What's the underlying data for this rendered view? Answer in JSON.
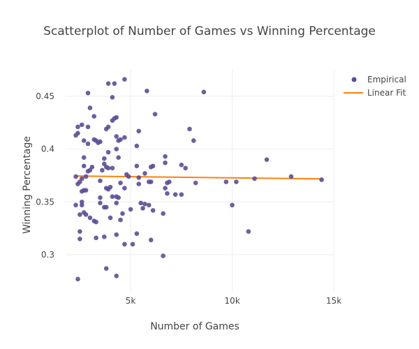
{
  "chart_data": {
    "type": "scatter",
    "title": "Scatterplot of Number of Games vs Winning Percentage",
    "xlabel": "Number of Games",
    "ylabel": "Winning Percentage",
    "xlim": [
      1800,
      15000
    ],
    "ylim": [
      0.265,
      0.475
    ],
    "x_ticks": [
      5000,
      10000,
      15000
    ],
    "x_tick_labels": [
      "5k",
      "10k",
      "15k"
    ],
    "y_ticks": [
      0.3,
      0.35,
      0.4,
      0.45
    ],
    "y_tick_labels": [
      "0.3",
      "0.35",
      "0.4",
      "0.45"
    ],
    "grid": true,
    "legend_position": "top-right",
    "colors": {
      "empirical": "#5b4e96",
      "linear_fit": "#ff7f0e",
      "grid": "#eeeeee",
      "text": "#444444"
    },
    "series": [
      {
        "name": "Empirical",
        "kind": "markers",
        "points": [
          [
            2400,
            0.277
          ],
          [
            3800,
            0.287
          ],
          [
            4300,
            0.28
          ],
          [
            6600,
            0.299
          ],
          [
            2300,
            0.347
          ],
          [
            2400,
            0.367
          ],
          [
            2300,
            0.374
          ],
          [
            2500,
            0.369
          ],
          [
            2400,
            0.415
          ],
          [
            2300,
            0.413
          ],
          [
            2400,
            0.421
          ],
          [
            2600,
            0.423
          ],
          [
            2700,
            0.408
          ],
          [
            2900,
            0.405
          ],
          [
            2900,
            0.421
          ],
          [
            2900,
            0.453
          ],
          [
            3000,
            0.439
          ],
          [
            3200,
            0.431
          ],
          [
            3200,
            0.409
          ],
          [
            3300,
            0.408
          ],
          [
            3500,
            0.407
          ],
          [
            3400,
            0.406
          ],
          [
            3600,
            0.38
          ],
          [
            3500,
            0.37
          ],
          [
            3100,
            0.383
          ],
          [
            3000,
            0.38
          ],
          [
            2900,
            0.379
          ],
          [
            2800,
            0.374
          ],
          [
            2600,
            0.372
          ],
          [
            2700,
            0.384
          ],
          [
            2700,
            0.392
          ],
          [
            2600,
            0.35
          ],
          [
            2600,
            0.36
          ],
          [
            2700,
            0.361
          ],
          [
            2800,
            0.361
          ],
          [
            2700,
            0.34
          ],
          [
            2600,
            0.347
          ],
          [
            2500,
            0.338
          ],
          [
            2500,
            0.322
          ],
          [
            2500,
            0.315
          ],
          [
            2800,
            0.338
          ],
          [
            3000,
            0.335
          ],
          [
            3200,
            0.332
          ],
          [
            3300,
            0.331
          ],
          [
            3300,
            0.316
          ],
          [
            3500,
            0.354
          ],
          [
            3500,
            0.349
          ],
          [
            3700,
            0.345
          ],
          [
            3700,
            0.317
          ],
          [
            3800,
            0.345
          ],
          [
            3900,
            0.362
          ],
          [
            3800,
            0.363
          ],
          [
            4000,
            0.364
          ],
          [
            4100,
            0.355
          ],
          [
            4000,
            0.335
          ],
          [
            4300,
            0.319
          ],
          [
            4500,
            0.333
          ],
          [
            4600,
            0.339
          ],
          [
            4700,
            0.31
          ],
          [
            5100,
            0.31
          ],
          [
            5300,
            0.32
          ],
          [
            5000,
            0.343
          ],
          [
            5500,
            0.349
          ],
          [
            5600,
            0.344
          ],
          [
            5700,
            0.348
          ],
          [
            5900,
            0.347
          ],
          [
            5400,
            0.367
          ],
          [
            5400,
            0.373
          ],
          [
            4700,
            0.363
          ],
          [
            4500,
            0.368
          ],
          [
            4400,
            0.354
          ],
          [
            4300,
            0.349
          ],
          [
            4300,
            0.355
          ],
          [
            4100,
            0.382
          ],
          [
            3900,
            0.382
          ],
          [
            3800,
            0.383
          ],
          [
            3700,
            0.386
          ],
          [
            3700,
            0.391
          ],
          [
            3900,
            0.397
          ],
          [
            3800,
            0.419
          ],
          [
            3900,
            0.421
          ],
          [
            4100,
            0.427
          ],
          [
            4200,
            0.429
          ],
          [
            4300,
            0.43
          ],
          [
            4300,
            0.412
          ],
          [
            4400,
            0.408
          ],
          [
            4300,
            0.4
          ],
          [
            4400,
            0.392
          ],
          [
            4500,
            0.409
          ],
          [
            4700,
            0.411
          ],
          [
            4800,
            0.376
          ],
          [
            4900,
            0.374
          ],
          [
            5300,
            0.384
          ],
          [
            5300,
            0.403
          ],
          [
            5400,
            0.417
          ],
          [
            5700,
            0.377
          ],
          [
            5900,
            0.369
          ],
          [
            6000,
            0.383
          ],
          [
            6100,
            0.384
          ],
          [
            6000,
            0.369
          ],
          [
            6100,
            0.342
          ],
          [
            6000,
            0.314
          ],
          [
            6600,
            0.339
          ],
          [
            6700,
            0.363
          ],
          [
            6800,
            0.358
          ],
          [
            6800,
            0.368
          ],
          [
            6900,
            0.369
          ],
          [
            6700,
            0.387
          ],
          [
            6700,
            0.393
          ],
          [
            7200,
            0.357
          ],
          [
            7500,
            0.357
          ],
          [
            7500,
            0.385
          ],
          [
            7700,
            0.382
          ],
          [
            7900,
            0.419
          ],
          [
            8100,
            0.408
          ],
          [
            8200,
            0.368
          ],
          [
            9700,
            0.369
          ],
          [
            10000,
            0.347
          ],
          [
            10200,
            0.369
          ],
          [
            10800,
            0.322
          ],
          [
            11100,
            0.372
          ],
          [
            11700,
            0.39
          ],
          [
            12900,
            0.374
          ],
          [
            14400,
            0.371
          ],
          [
            3900,
            0.462
          ],
          [
            4200,
            0.462
          ],
          [
            4700,
            0.466
          ],
          [
            5800,
            0.455
          ],
          [
            8600,
            0.454
          ],
          [
            6200,
            0.433
          ],
          [
            4100,
            0.449
          ]
        ]
      },
      {
        "name": "Linear Fit",
        "kind": "line",
        "points": [
          [
            2300,
            0.3745
          ],
          [
            14400,
            0.3718
          ]
        ]
      }
    ]
  }
}
